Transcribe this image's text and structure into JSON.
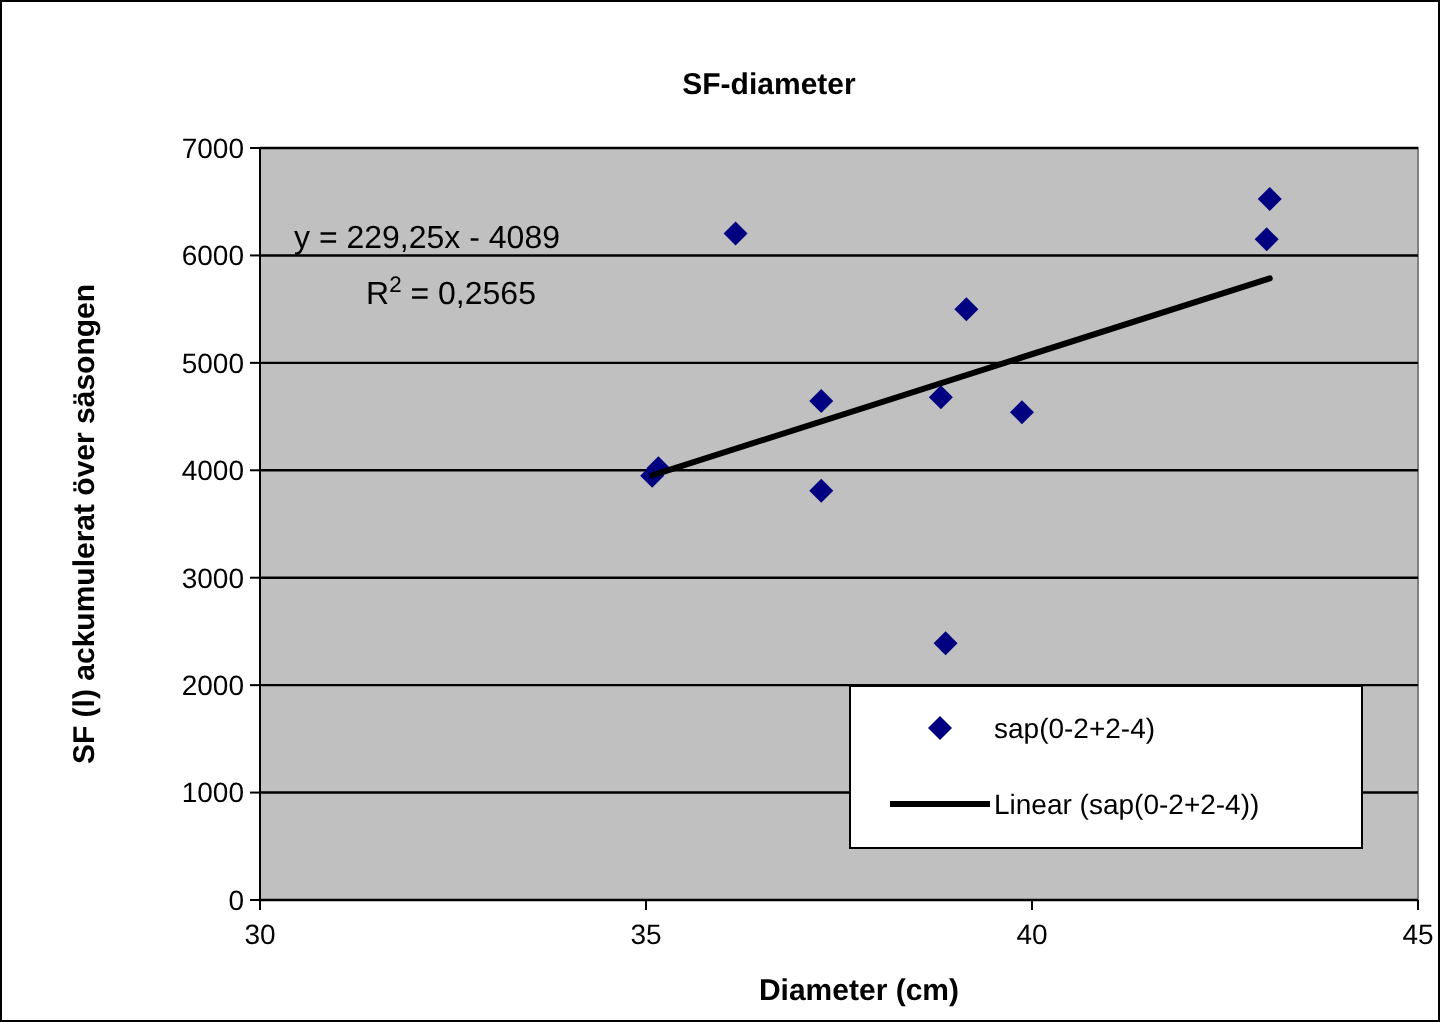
{
  "chart_data": {
    "type": "scatter",
    "title": "SF-diameter",
    "xlabel": "Diameter (cm)",
    "ylabel": "SF (l) ackumulerat över säsongen",
    "annotations": [
      "y = 229,25x - 4089",
      "R$^{2}$ = 0,2565"
    ],
    "series": [
      {
        "name": "sap(0-2+2-4)",
        "color": "#000080",
        "x": [
          35.08,
          35.16,
          36.16,
          37.27,
          37.27,
          38.82,
          39.15,
          38.88,
          39.87,
          43.04,
          43.08
        ],
        "values": [
          3950,
          4020,
          6205,
          4645,
          3810,
          4680,
          5500,
          2390,
          4540,
          6150,
          6525
        ],
        "marker": "diamond"
      },
      {
        "name": "Linear (sap(0-2+2-4))",
        "type": "line",
        "color": "#000000",
        "x": [
          35.08,
          43.08
        ],
        "values": [
          3953,
          5787
        ],
        "marker": "none",
        "line_style": "solid"
      }
    ],
    "xlim": [
      30,
      45
    ],
    "xticks": [
      30,
      35,
      40,
      45
    ],
    "ylim": [
      0,
      7000
    ],
    "yticks": [
      0,
      1000,
      2000,
      3000,
      4000,
      5000,
      6000,
      7000
    ],
    "grid": "y",
    "legend": "bottom right"
  }
}
